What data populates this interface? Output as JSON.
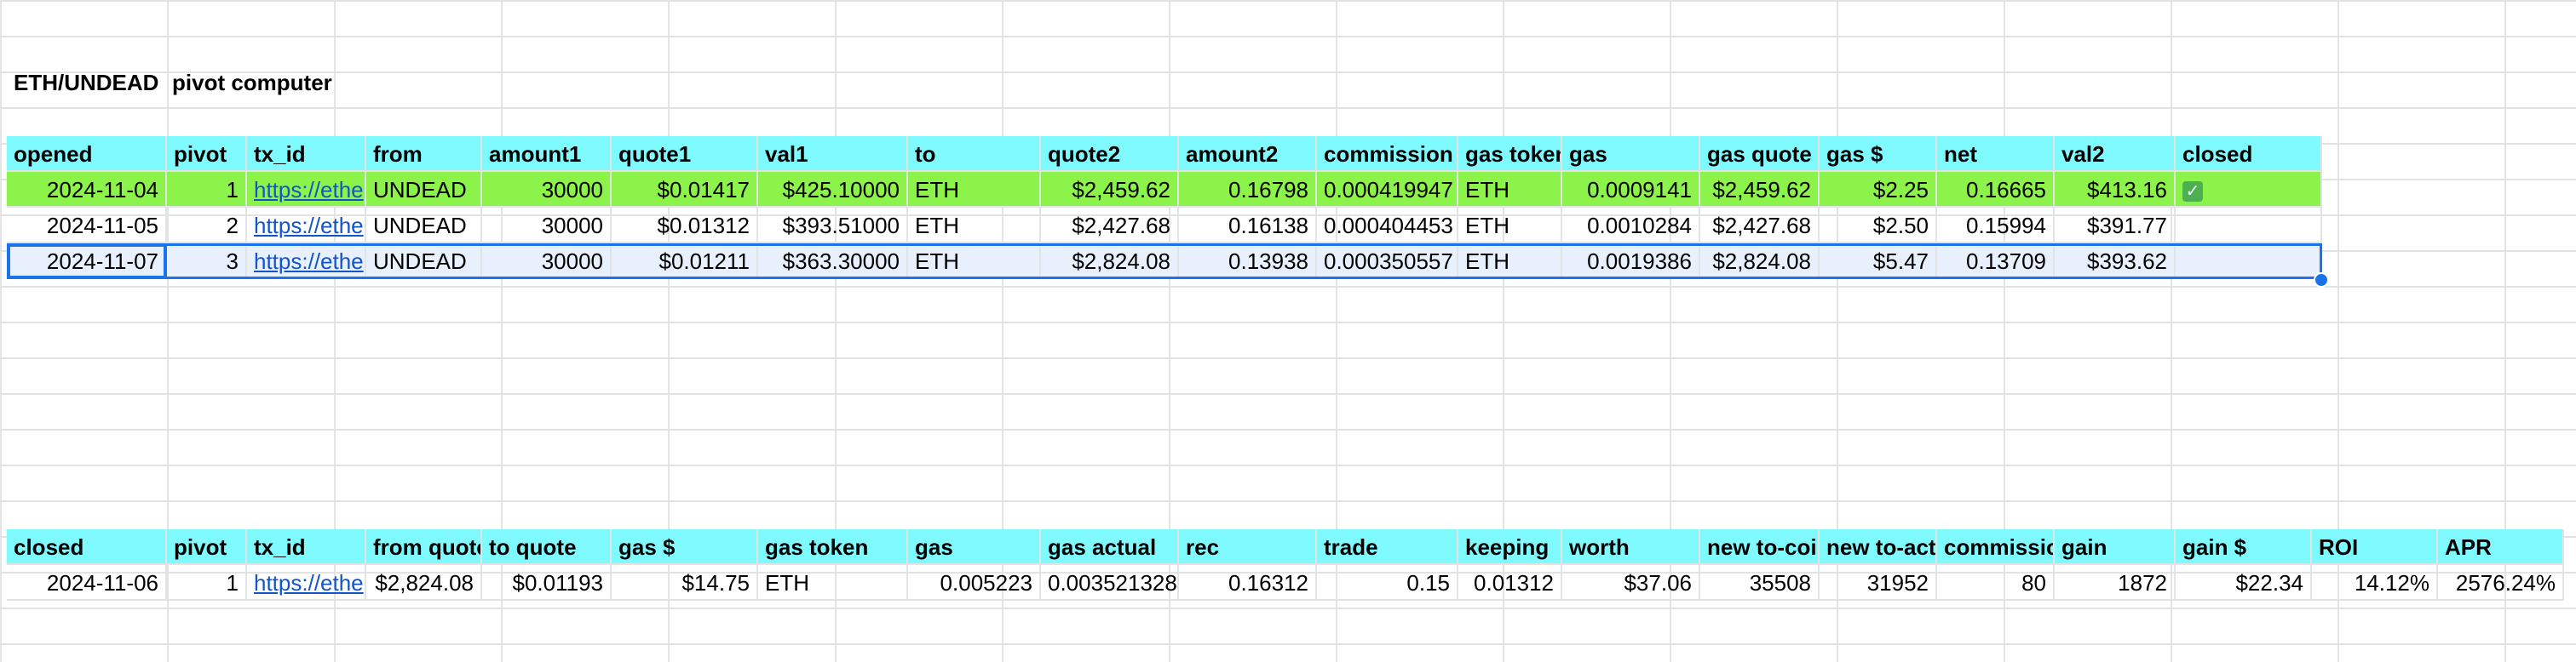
{
  "sheet": {
    "title_a": "ETH/UNDEAD",
    "title_b": "pivot computer"
  },
  "top_table": {
    "headers": [
      "opened",
      "pivot",
      "tx_id",
      "from",
      "amount1",
      "quote1",
      "val1",
      "to",
      "quote2",
      "amount2",
      "commission",
      "gas token",
      "gas",
      "gas quote",
      "gas $",
      "net",
      "val2",
      "closed"
    ],
    "rows": [
      [
        "2024-11-04",
        "1",
        "https://ethe",
        "UNDEAD",
        "30000",
        "$0.01417",
        "$425.10000",
        "ETH",
        "$2,459.62",
        "0.16798",
        "0.000419947",
        "ETH",
        "0.0009141",
        "$2,459.62",
        "$2.25",
        "0.16665",
        "$413.16",
        "✅"
      ],
      [
        "2024-11-05",
        "2",
        "https://ethe",
        "UNDEAD",
        "30000",
        "$0.01312",
        "$393.51000",
        "ETH",
        "$2,427.68",
        "0.16138",
        "0.000404453",
        "ETH",
        "0.0010284",
        "$2,427.68",
        "$2.50",
        "0.15994",
        "$391.77",
        ""
      ],
      [
        "2024-11-07",
        "3",
        "https://ethe",
        "UNDEAD",
        "30000",
        "$0.01211",
        "$363.30000",
        "ETH",
        "$2,824.08",
        "0.13938",
        "0.000350557",
        "ETH",
        "0.0019386",
        "$2,824.08",
        "$5.47",
        "0.13709",
        "$393.62",
        ""
      ]
    ]
  },
  "bottom_table": {
    "headers": [
      "closed",
      "pivot",
      "tx_id",
      "from quote",
      "to quote",
      "gas $",
      "gas token",
      "gas",
      "gas actual",
      "rec",
      "trade",
      "keeping",
      "worth",
      "new to-coin",
      "new to-actual",
      "commission",
      "gain",
      "gain $",
      "ROI",
      "APR"
    ],
    "rows": [
      [
        "2024-11-06",
        "1",
        "https://ethe",
        "$2,824.08",
        "$0.01193",
        "$14.75",
        "ETH",
        "0.005223",
        "0.003521328",
        "0.16312",
        "0.15",
        "0.01312",
        "$37.06",
        "35508",
        "31952",
        "80",
        "1872",
        "$22.34",
        "14.12%",
        "2576.24%"
      ]
    ]
  },
  "colors": {
    "header": "#7ffbff",
    "closed_row": "#8cf34a",
    "selection": "#1a73e8",
    "link": "#1155cc"
  }
}
